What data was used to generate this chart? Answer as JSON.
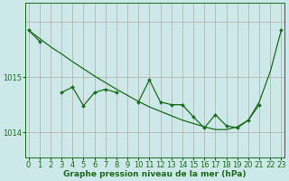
{
  "hours": [
    0,
    1,
    2,
    3,
    4,
    5,
    6,
    7,
    8,
    9,
    10,
    11,
    12,
    13,
    14,
    15,
    16,
    17,
    18,
    19,
    20,
    21,
    22,
    23
  ],
  "smooth_line": [
    1015.85,
    1015.7,
    1015.55,
    1015.42,
    1015.28,
    1015.15,
    1015.02,
    1014.9,
    1014.78,
    1014.67,
    1014.56,
    1014.46,
    1014.38,
    1014.3,
    1014.22,
    1014.16,
    1014.1,
    1014.05,
    1014.05,
    1014.1,
    1014.22,
    1014.55,
    1015.1,
    1015.85
  ],
  "jagged_line": [
    1015.85,
    1015.65,
    null,
    1014.72,
    1014.82,
    1014.48,
    1014.72,
    1014.78,
    1014.72,
    null,
    1014.55,
    1014.95,
    1014.55,
    1014.5,
    1014.5,
    1014.28,
    1014.08,
    1014.32,
    1014.12,
    1014.08,
    1014.22,
    1014.5,
    null,
    1015.85
  ],
  "line_color": "#1a6b1a",
  "bg_color": "#cce8e8",
  "grid_color_v": "#b8a8a8",
  "grid_color_h": "#b8a8a8",
  "ytick_labels": [
    "1014",
    "1015"
  ],
  "ytick_vals": [
    1014.0,
    1015.0
  ],
  "ylim": [
    1013.55,
    1016.35
  ],
  "xlim": [
    -0.3,
    23.3
  ],
  "xlabel": "Graphe pression niveau de la mer (hPa)",
  "xlabel_fontsize": 6.5,
  "tick_fontsize": 6.0
}
